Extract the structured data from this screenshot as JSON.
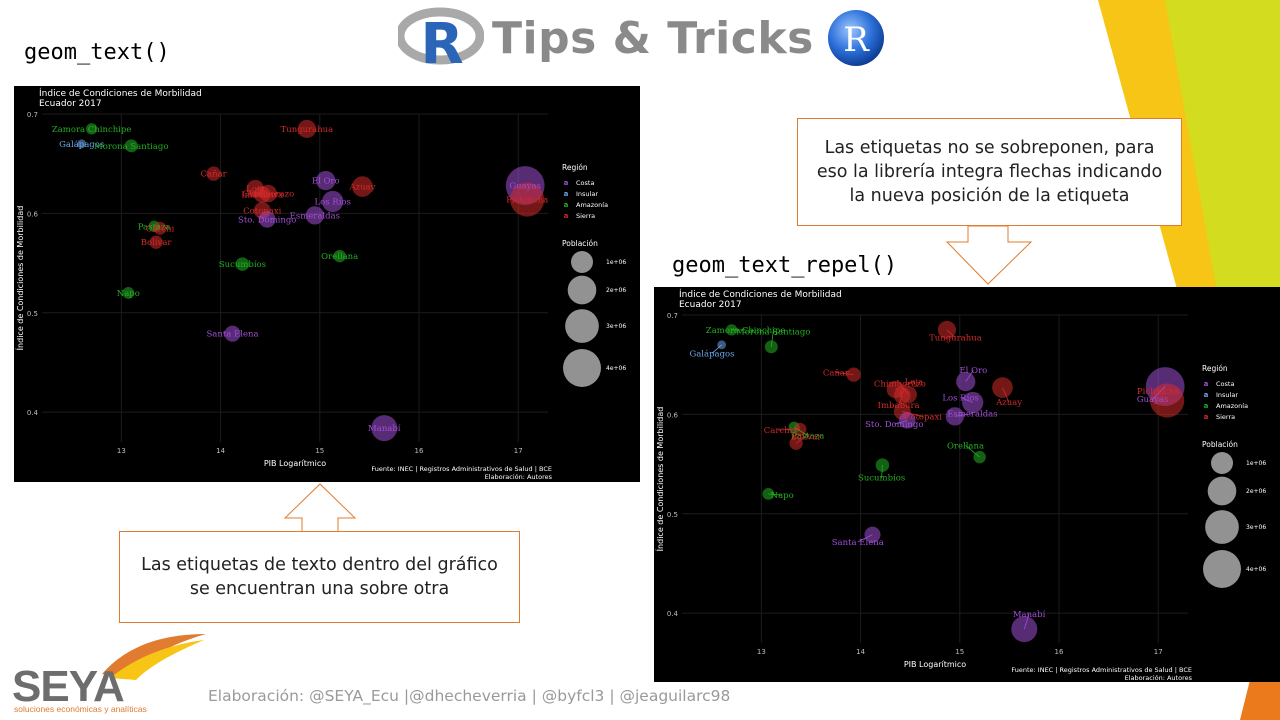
{
  "header": {
    "title": "Tips & Tricks",
    "r_logo_letter": "R"
  },
  "labels": {
    "left_code": "geom_text()",
    "right_code": "geom_text_repel()"
  },
  "callouts": {
    "top_right": "Las etiquetas no se sobreponen, para eso la librería integra flechas indicando la nueva posición de la etiqueta",
    "bottom_left": "Las etiquetas de texto dentro del gráfico se encuentran una sobre otra"
  },
  "footer": {
    "credits": "Elaboración: @SEYA_Ecu |@dhecheverria | @byfcl3 | @jeaguilarc98"
  },
  "logo": {
    "name": "SEYA",
    "tagline": "soluciones económicas y analíticas"
  },
  "colors": {
    "accent_orange": "#e07b2f",
    "deco_yellow": "#f6c515",
    "deco_lime": "#d4dc20",
    "costa": "#a04fd6",
    "insular": "#6aa6e8",
    "amazonia": "#22b022",
    "sierra": "#d42a2a"
  },
  "chart_data": [
    {
      "type": "scatter",
      "variant": "geom_text",
      "title": "Índice de Condiciones de Morbilidad",
      "subtitle": "Ecuador 2017",
      "xlabel": "PIB Logarítmico",
      "ylabel": "Índice de Condiciones de Morbilidad",
      "xlim": [
        12.2,
        17.3
      ],
      "ylim": [
        0.37,
        0.7
      ],
      "xticks": [
        "13",
        "14",
        "15",
        "16",
        "17"
      ],
      "yticks": [
        "0.4",
        "0.5",
        "0.6",
        "0.7"
      ],
      "caption": [
        "Fuente: INEC | Registros Administrativos de Salud | BCE",
        "Elaboración: Autores"
      ],
      "legend": {
        "region_title": "Región",
        "regions": [
          "Costa",
          "Insular",
          "Amazonía",
          "Sierra"
        ],
        "size_title": "Población",
        "sizes": [
          "1e+06",
          "2e+06",
          "3e+06",
          "4e+06"
        ]
      }
    },
    {
      "type": "scatter",
      "variant": "geom_text_repel",
      "title": "Índice de Condiciones de Morbilidad",
      "subtitle": "Ecuador 2017",
      "xlabel": "PIB Logarítmico",
      "ylabel": "Índice de Condiciones de Morbilidad",
      "xlim": [
        12.2,
        17.3
      ],
      "ylim": [
        0.37,
        0.7
      ],
      "xticks": [
        "13",
        "14",
        "15",
        "16",
        "17"
      ],
      "yticks": [
        "0.4",
        "0.5",
        "0.6",
        "0.7"
      ],
      "caption": [
        "Fuente: INEC | Registros Administrativos de Salud | BCE",
        "Elaboración: Autores"
      ],
      "legend": {
        "region_title": "Región",
        "regions": [
          "Costa",
          "Insular",
          "Amazonía",
          "Sierra"
        ],
        "size_title": "Población",
        "sizes": [
          "1e+06",
          "2e+06",
          "3e+06",
          "4e+06"
        ]
      }
    }
  ],
  "points": [
    {
      "name": "Zamora Chinchipe",
      "region": "Amazonía",
      "x": 12.7,
      "y": 0.685,
      "pop": 0.11
    },
    {
      "name": "Galápagos",
      "region": "Insular",
      "x": 12.6,
      "y": 0.67,
      "pop": 0.03
    },
    {
      "name": "Morona Santiago",
      "region": "Amazonía",
      "x": 13.1,
      "y": 0.668,
      "pop": 0.19
    },
    {
      "name": "Tungurahua",
      "region": "Sierra",
      "x": 14.87,
      "y": 0.685,
      "pop": 0.58
    },
    {
      "name": "Cañar",
      "region": "Sierra",
      "x": 13.93,
      "y": 0.64,
      "pop": 0.27
    },
    {
      "name": "Loja",
      "region": "Sierra",
      "x": 14.35,
      "y": 0.625,
      "pop": 0.5
    },
    {
      "name": "Imbabura",
      "region": "Sierra",
      "x": 14.42,
      "y": 0.619,
      "pop": 0.45
    },
    {
      "name": "Chimborazo",
      "region": "Sierra",
      "x": 14.48,
      "y": 0.62,
      "pop": 0.51
    },
    {
      "name": "Cotopaxi",
      "region": "Sierra",
      "x": 14.42,
      "y": 0.603,
      "pop": 0.46
    },
    {
      "name": "Sto. Domingo",
      "region": "Costa",
      "x": 14.47,
      "y": 0.594,
      "pop": 0.44
    },
    {
      "name": "El Oro",
      "region": "Costa",
      "x": 15.06,
      "y": 0.633,
      "pop": 0.69
    },
    {
      "name": "Azuay",
      "region": "Sierra",
      "x": 15.43,
      "y": 0.627,
      "pop": 0.84
    },
    {
      "name": "Los Ríos",
      "region": "Costa",
      "x": 15.13,
      "y": 0.612,
      "pop": 0.91
    },
    {
      "name": "Esmeraldas",
      "region": "Costa",
      "x": 14.95,
      "y": 0.598,
      "pop": 0.59
    },
    {
      "name": "Guayas",
      "region": "Costa",
      "x": 17.07,
      "y": 0.628,
      "pop": 4.2
    },
    {
      "name": "Pichincha",
      "region": "Sierra",
      "x": 17.09,
      "y": 0.614,
      "pop": 3.1
    },
    {
      "name": "Pastaza",
      "region": "Amazonía",
      "x": 13.33,
      "y": 0.587,
      "pop": 0.11
    },
    {
      "name": "Carchi",
      "region": "Sierra",
      "x": 13.39,
      "y": 0.585,
      "pop": 0.18
    },
    {
      "name": "Bolívar",
      "region": "Sierra",
      "x": 13.35,
      "y": 0.571,
      "pop": 0.21
    },
    {
      "name": "Sucumbíos",
      "region": "Amazonía",
      "x": 14.22,
      "y": 0.549,
      "pop": 0.22
    },
    {
      "name": "Orellana",
      "region": "Amazonía",
      "x": 15.2,
      "y": 0.557,
      "pop": 0.16
    },
    {
      "name": "Napo",
      "region": "Amazonía",
      "x": 13.07,
      "y": 0.52,
      "pop": 0.13
    },
    {
      "name": "Santa Elena",
      "region": "Costa",
      "x": 14.12,
      "y": 0.479,
      "pop": 0.4
    },
    {
      "name": "Manabí",
      "region": "Costa",
      "x": 15.65,
      "y": 0.384,
      "pop": 1.56
    }
  ]
}
